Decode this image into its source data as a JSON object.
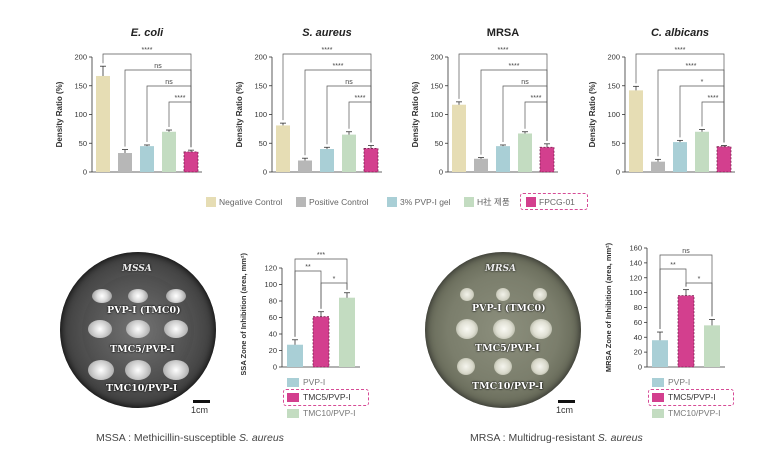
{
  "colors": {
    "negative": "#e6ddb4",
    "positive": "#b7b7b7",
    "pvp": "#a9cfd6",
    "hsa": "#c3dcc1",
    "fpcg": "#d33f8e",
    "text": "#444444",
    "dash": "#d64b96"
  },
  "top_legend": {
    "items": [
      "Negative Control",
      "Positive Control",
      "3% PVP-I gel",
      "H社 제품",
      "FPCG-01"
    ]
  },
  "bottom_legend": {
    "items": [
      "PVP-I",
      "TMC5/PVP-I",
      "TMC10/PVP-I"
    ]
  },
  "plates": {
    "mssa": {
      "title": "MSSA",
      "labels": [
        "PVP-I (TMC0)",
        "TMC5/PVP-I",
        "TMC10/PVP-I"
      ],
      "scale": "1cm"
    },
    "mrsa": {
      "title": "MRSA",
      "labels": [
        "PVP-I (TMC0)",
        "TMC5/PVP-I",
        "TMC10/PVP-I"
      ],
      "scale": "1cm"
    }
  },
  "captions": {
    "left_prefix": "MSSA : Methicillin-susceptible ",
    "left_italic": "S. aureus",
    "right_prefix": "MRSA : Multidrug-resistant ",
    "right_italic": "S. aureus"
  },
  "chart_data": [
    {
      "type": "bar",
      "title": "E. coli",
      "title_italic": true,
      "ylabel": "Density Ratio (%)",
      "ylim": [
        0,
        200
      ],
      "yticks": [
        0,
        50,
        100,
        150,
        200
      ],
      "categories": [
        "Negative Control",
        "Positive Control",
        "3% PVP-I gel",
        "H社 제품",
        "FPCG-01"
      ],
      "values": [
        167,
        33,
        45,
        70,
        35
      ],
      "errors": [
        17,
        6,
        2,
        3,
        3
      ],
      "brackets": [
        {
          "from": 0,
          "to": 4,
          "label": "****"
        },
        {
          "from": 1,
          "to": 4,
          "label": "ns"
        },
        {
          "from": 2,
          "to": 4,
          "label": "ns"
        },
        {
          "from": 3,
          "to": 4,
          "label": "****"
        }
      ]
    },
    {
      "type": "bar",
      "title": "S. aureus",
      "title_italic": true,
      "ylabel": "Density Ratio (%)",
      "ylim": [
        0,
        200
      ],
      "yticks": [
        0,
        50,
        100,
        150,
        200
      ],
      "categories": [
        "Negative Control",
        "Positive Control",
        "3% PVP-I gel",
        "H社 제품",
        "FPCG-01"
      ],
      "values": [
        81,
        20,
        40,
        65,
        41
      ],
      "errors": [
        4,
        4,
        3,
        5,
        5
      ],
      "brackets": [
        {
          "from": 0,
          "to": 4,
          "label": "****"
        },
        {
          "from": 1,
          "to": 4,
          "label": "****"
        },
        {
          "from": 2,
          "to": 4,
          "label": "ns"
        },
        {
          "from": 3,
          "to": 4,
          "label": "****"
        }
      ]
    },
    {
      "type": "bar",
      "title": "MRSA",
      "title_italic": false,
      "ylabel": "Density Ratio (%)",
      "ylim": [
        0,
        200
      ],
      "yticks": [
        0,
        50,
        100,
        150,
        200
      ],
      "categories": [
        "Negative Control",
        "Positive Control",
        "3% PVP-I gel",
        "H社 제품",
        "FPCG-01"
      ],
      "values": [
        117,
        23,
        45,
        67,
        43
      ],
      "errors": [
        5,
        2,
        2,
        3,
        6
      ],
      "brackets": [
        {
          "from": 0,
          "to": 4,
          "label": "****"
        },
        {
          "from": 1,
          "to": 4,
          "label": "****"
        },
        {
          "from": 2,
          "to": 4,
          "label": "ns"
        },
        {
          "from": 3,
          "to": 4,
          "label": "****"
        }
      ]
    },
    {
      "type": "bar",
      "title": "C. albicans",
      "title_italic": true,
      "ylabel": "Density Ratio (%)",
      "ylim": [
        0,
        200
      ],
      "yticks": [
        0,
        50,
        100,
        150,
        200
      ],
      "categories": [
        "Negative Control",
        "Positive Control",
        "3% PVP-I gel",
        "H社 제품",
        "FPCG-01"
      ],
      "values": [
        142,
        18,
        52,
        70,
        44
      ],
      "errors": [
        7,
        4,
        3,
        4,
        2
      ],
      "brackets": [
        {
          "from": 0,
          "to": 4,
          "label": "****"
        },
        {
          "from": 1,
          "to": 4,
          "label": "****"
        },
        {
          "from": 2,
          "to": 4,
          "label": "*"
        },
        {
          "from": 3,
          "to": 4,
          "label": "****"
        }
      ]
    },
    {
      "type": "bar",
      "title": "",
      "ylabel": "MSSA Zone of Inhibition (area, mm²)",
      "ylim": [
        0,
        120
      ],
      "yticks": [
        0,
        20,
        40,
        60,
        80,
        100,
        120
      ],
      "categories": [
        "PVP-I",
        "TMC5/PVP-I",
        "TMC10/PVP-I"
      ],
      "values": [
        27,
        61,
        84
      ],
      "errors": [
        6,
        6,
        6
      ],
      "brackets": [
        {
          "from": 0,
          "to": 2,
          "label": "***"
        },
        {
          "from": 0,
          "to": 1,
          "label": "**"
        },
        {
          "from": 1,
          "to": 2,
          "label": "*"
        }
      ]
    },
    {
      "type": "bar",
      "title": "",
      "ylabel": "MRSA Zone of Inhibition (area, mm²)",
      "ylim": [
        0,
        160
      ],
      "yticks": [
        0,
        20,
        40,
        60,
        80,
        100,
        120,
        140,
        160
      ],
      "categories": [
        "PVP-I",
        "TMC5/PVP-I",
        "TMC10/PVP-I"
      ],
      "values": [
        36,
        96,
        56
      ],
      "errors": [
        11,
        8,
        8
      ],
      "brackets": [
        {
          "from": 0,
          "to": 2,
          "label": "ns"
        },
        {
          "from": 0,
          "to": 1,
          "label": "**"
        },
        {
          "from": 1,
          "to": 2,
          "label": "*"
        }
      ]
    }
  ]
}
